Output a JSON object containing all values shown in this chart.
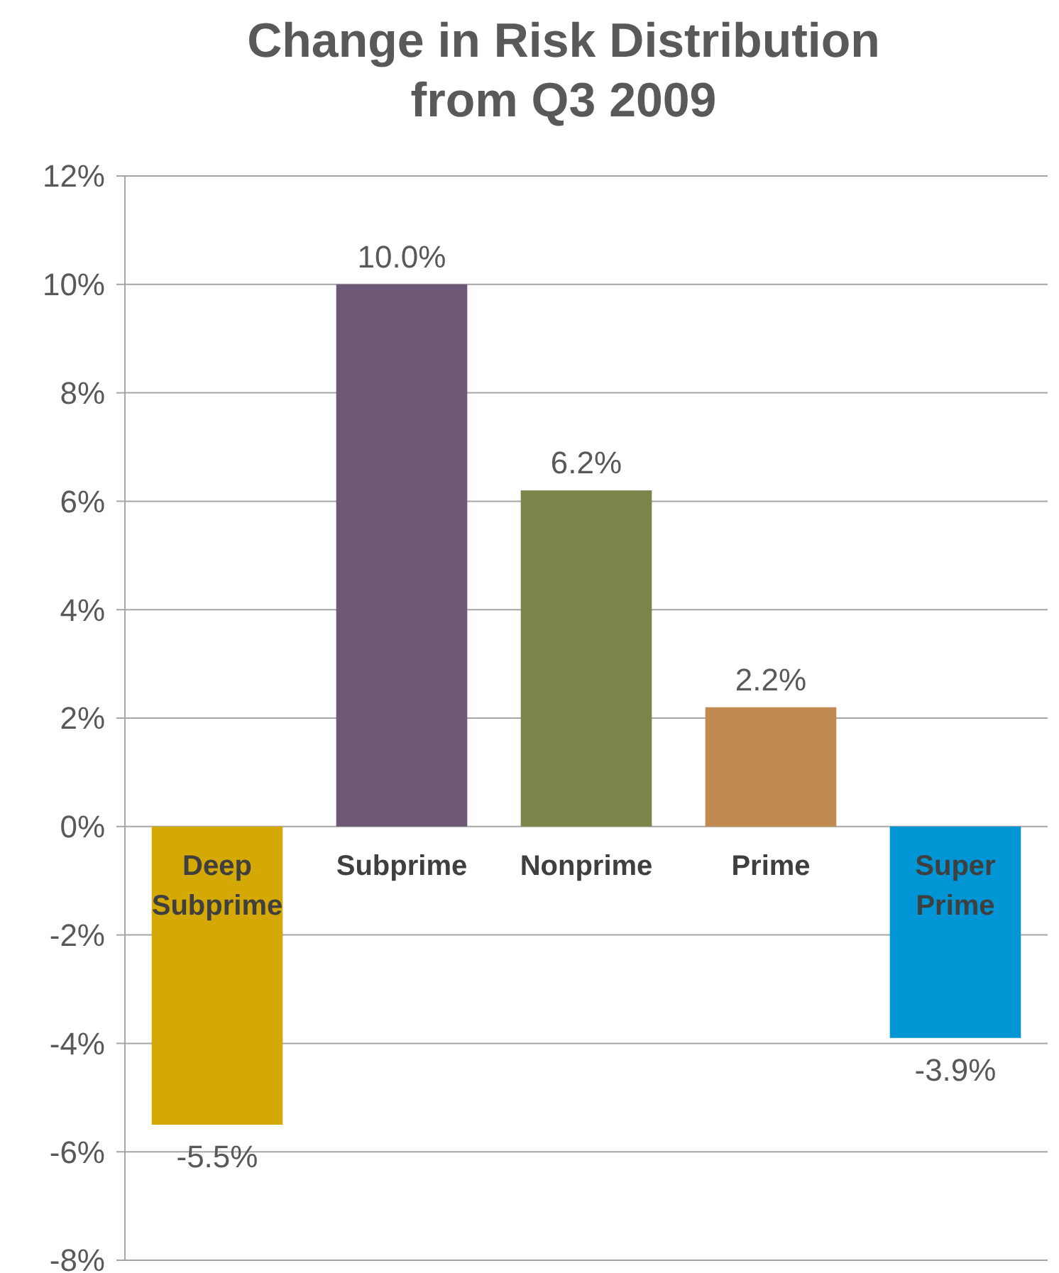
{
  "chart_data": {
    "type": "bar",
    "title": "Change in Risk Distribution from Q3 2009",
    "categories": [
      "Deep Subprime",
      "Subprime",
      "Nonprime",
      "Prime",
      "Super Prime"
    ],
    "values": [
      -5.5,
      10.0,
      6.2,
      2.2,
      -3.9
    ],
    "colors": [
      "#d4a905",
      "#6e5878",
      "#79854b",
      "#c08a50",
      "#0096d6"
    ],
    "value_labels": [
      "-5.5%",
      "10.0%",
      "6.2%",
      "2.2%",
      "-3.9%"
    ],
    "ylim": [
      -8,
      12
    ],
    "yticks": [
      {
        "value": -8,
        "label": "-8%"
      },
      {
        "value": -6,
        "label": "-6%"
      },
      {
        "value": -4,
        "label": "-4%"
      },
      {
        "value": -2,
        "label": "-2%"
      },
      {
        "value": 0,
        "label": "0%"
      },
      {
        "value": 2,
        "label": "2%"
      },
      {
        "value": 4,
        "label": "4%"
      },
      {
        "value": 6,
        "label": "6%"
      },
      {
        "value": 8,
        "label": "8%"
      },
      {
        "value": 10,
        "label": "10%"
      },
      {
        "value": 12,
        "label": "12%"
      }
    ],
    "grid": "y"
  }
}
